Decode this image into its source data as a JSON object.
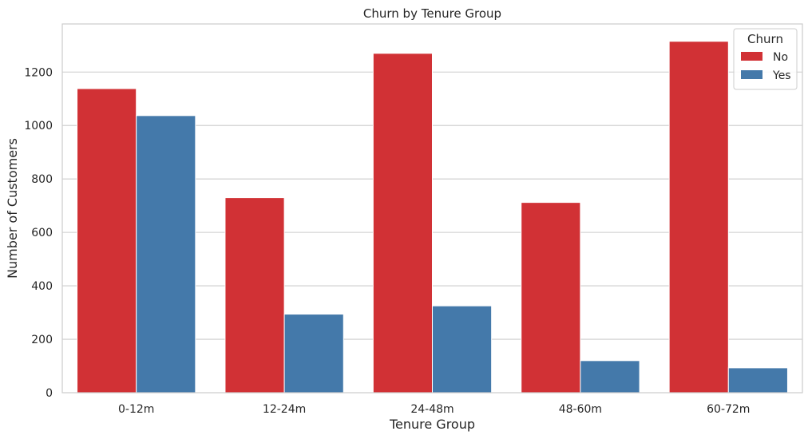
{
  "chart_data": {
    "type": "bar",
    "title": "Churn by Tenure Group",
    "xlabel": "Tenure Group",
    "ylabel": "Number of Customers",
    "categories": [
      "0-12m",
      "12-24m",
      "24-48m",
      "48-60m",
      "60-72m"
    ],
    "series": [
      {
        "name": "No",
        "color": "#d13135",
        "values": [
          1138,
          730,
          1270,
          712,
          1315
        ]
      },
      {
        "name": "Yes",
        "color": "#4479aa",
        "values": [
          1037,
          294,
          325,
          120,
          93
        ]
      }
    ],
    "ylim": [
      0,
      1380
    ],
    "yticks": [
      0,
      200,
      400,
      600,
      800,
      1000,
      1200
    ],
    "grid": true,
    "legend": {
      "title": "Churn",
      "position": "top-right"
    }
  }
}
